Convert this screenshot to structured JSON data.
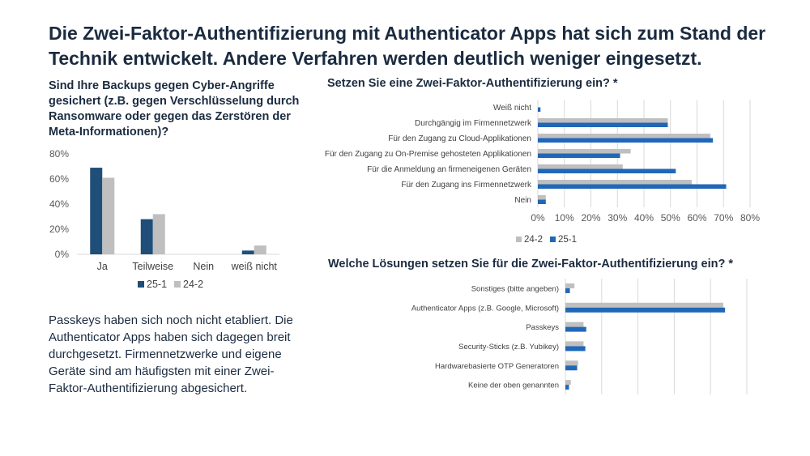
{
  "headline": "Die Zwei-Faktor-Authentifizierung mit Authenticator Apps hat sich zum Stand der Technik entwickelt. Andere Verfahren werden deutlich weniger eingesetzt.",
  "note": "Passkeys haben sich noch nicht etabliert. Die Authenticator Apps haben sich dagegen breit durchgesetzt. Firmennetzwerke  und eigene Geräte sind am häufigsten mit einer Zwei-Faktor-Authentifizierung abgesichert.",
  "colors": {
    "dark": "#1f4e79",
    "blue": "#2167b7",
    "gray": "#bfbfbf",
    "grid": "#d9d9d9"
  },
  "chart_data": [
    {
      "id": "backups",
      "type": "bar",
      "title": "Sind Ihre Backups gegen Cyber-Angriffe gesichert (z.B. gegen Verschlüsselung durch Ransomware oder gegen das Zerstören der Meta-Informationen)?",
      "categories": [
        "Ja",
        "Teilweise",
        "Nein",
        "weiß nicht"
      ],
      "series": [
        {
          "name": "25-1",
          "color": "#1f4e79",
          "values": [
            69,
            28,
            0,
            3
          ]
        },
        {
          "name": "24-2",
          "color": "#bfbfbf",
          "values": [
            61,
            32,
            0,
            7
          ]
        }
      ],
      "ylim": [
        0,
        80
      ],
      "yticks": [
        "0%",
        "20%",
        "40%",
        "60%",
        "80%"
      ],
      "grid": false,
      "legend": "bottom"
    },
    {
      "id": "usage",
      "type": "bar",
      "orientation": "horizontal",
      "title": "Setzen Sie eine Zwei-Faktor-Authentifizierung ein? *",
      "categories": [
        "Weiß nicht",
        "Durchgängig im Firmennetzwerk",
        "Für den Zugang zu Cloud-Applikationen",
        "Für den Zugang zu On-Premise gehosteten Applikationen",
        "Für die Anmeldung an firmeneigenen Geräten",
        "Für den Zugang ins Firmennetzwerk",
        "Nein"
      ],
      "series": [
        {
          "name": "24-2",
          "color": "#bfbfbf",
          "values": [
            0,
            49,
            65,
            35,
            32,
            58,
            3
          ]
        },
        {
          "name": "25-1",
          "color": "#2167b7",
          "values": [
            1,
            49,
            66,
            31,
            52,
            71,
            3
          ]
        }
      ],
      "xlim": [
        0,
        80
      ],
      "xticks": [
        "0%",
        "10%",
        "20%",
        "30%",
        "40%",
        "50%",
        "60%",
        "70%",
        "80%"
      ],
      "grid": true,
      "legend": "bottom-left"
    },
    {
      "id": "solutions",
      "type": "bar",
      "orientation": "horizontal",
      "title": "Welche Lösungen setzen Sie für die Zwei-Faktor-Authentifizierung ein? *",
      "categories": [
        "Sonstiges (bitte angeben)",
        "Authenticator Apps (z.B. Google, Microsoft)",
        "Passkeys",
        "Security-Sticks (z.B. Yubikey)",
        "Hardwarebasierte OTP Generatoren",
        "Keine der oben genannten"
      ],
      "series": [
        {
          "name": "24-2",
          "color": "#bfbfbf",
          "values": [
            5,
            87,
            10,
            10,
            7,
            3
          ]
        },
        {
          "name": "25-1",
          "color": "#2167b7",
          "values": [
            2.5,
            88,
            11.5,
            11,
            6.5,
            2
          ]
        }
      ],
      "xlim": [
        0,
        100
      ],
      "grid": true
    }
  ]
}
